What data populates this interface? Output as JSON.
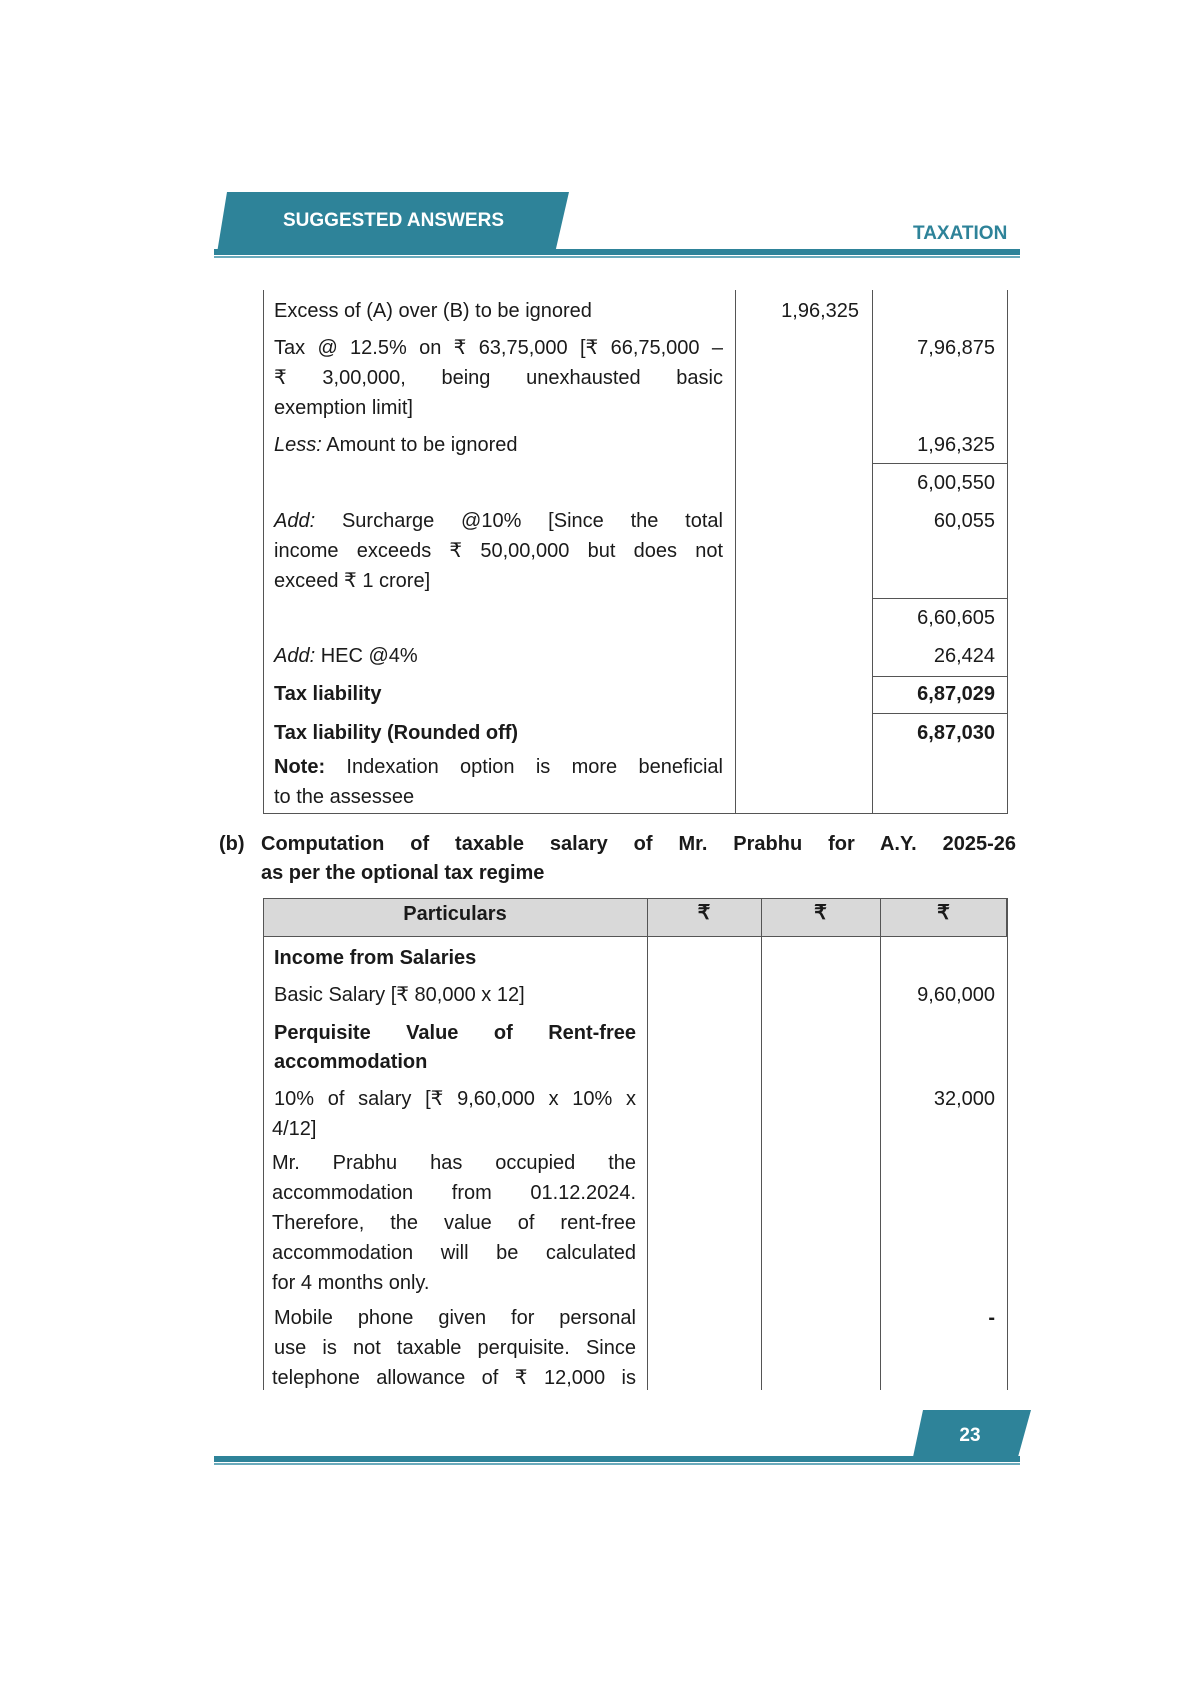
{
  "header": {
    "banner": "SUGGESTED ANSWERS",
    "subject": "TAXATION",
    "accent": "#2e8399"
  },
  "table1": {
    "row1": {
      "text": "Excess of (A) over (B) to be ignored",
      "col2": "1,96,325"
    },
    "row2": {
      "lines": [
        "Tax @ 12.5% on ₹ 63,75,000 [₹ 66,75,000 –",
        "₹ 3,00,000, being unexhausted basic",
        "exemption limit]"
      ],
      "col3": "7,96,875"
    },
    "row3": {
      "prefix": "Less:",
      "text": " Amount to be ignored",
      "col3": "1,96,325"
    },
    "row4": {
      "col3": "6,00,550"
    },
    "row5": {
      "prefix": "Add:",
      "lines": [
        " Surcharge @10% [Since the total",
        "income exceeds ₹ 50,00,000 but does not",
        "exceed ₹ 1 crore]"
      ],
      "col3": "60,055"
    },
    "row6": {
      "col3": "6,60,605"
    },
    "row7": {
      "prefix": "Add:",
      "text": " HEC @4%",
      "col3": "26,424"
    },
    "row8": {
      "text": "Tax liability",
      "col3": "6,87,029"
    },
    "row9": {
      "text": "Tax liability (Rounded off)",
      "col3": "6,87,030"
    },
    "row10": {
      "prefix": "Note:",
      "lines": [
        " Indexation option is more beneficial",
        "to the assessee"
      ]
    }
  },
  "section_b": {
    "label": "(b)",
    "lines": [
      "Computation of taxable salary of Mr. Prabhu for A.Y. 2025-26",
      "as per the optional tax regime"
    ]
  },
  "table2": {
    "headers": [
      "Particulars",
      "₹",
      "₹",
      "₹"
    ],
    "income_heading": "Income from Salaries",
    "basic": {
      "text": "Basic Salary [₹ 80,000 x 12]",
      "amount": "9,60,000"
    },
    "perq_heading": [
      "Perquisite Value of Rent-free",
      "accommodation"
    ],
    "ten_pct": {
      "lines": [
        "10% of salary [₹ 9,60,000 x 10% x",
        "4/12]"
      ],
      "amount": "32,000"
    },
    "note": [
      "Mr. Prabhu has occupied the",
      "accommodation from 01.12.2024.",
      "Therefore, the value of rent-free",
      "accommodation will be calculated",
      "for 4 months only."
    ],
    "mobile": {
      "lines": [
        "Mobile phone given for personal",
        "use is not taxable perquisite. Since",
        "telephone allowance of ₹ 12,000 is"
      ],
      "amount": "-"
    }
  },
  "footer": {
    "page_number": "23"
  }
}
